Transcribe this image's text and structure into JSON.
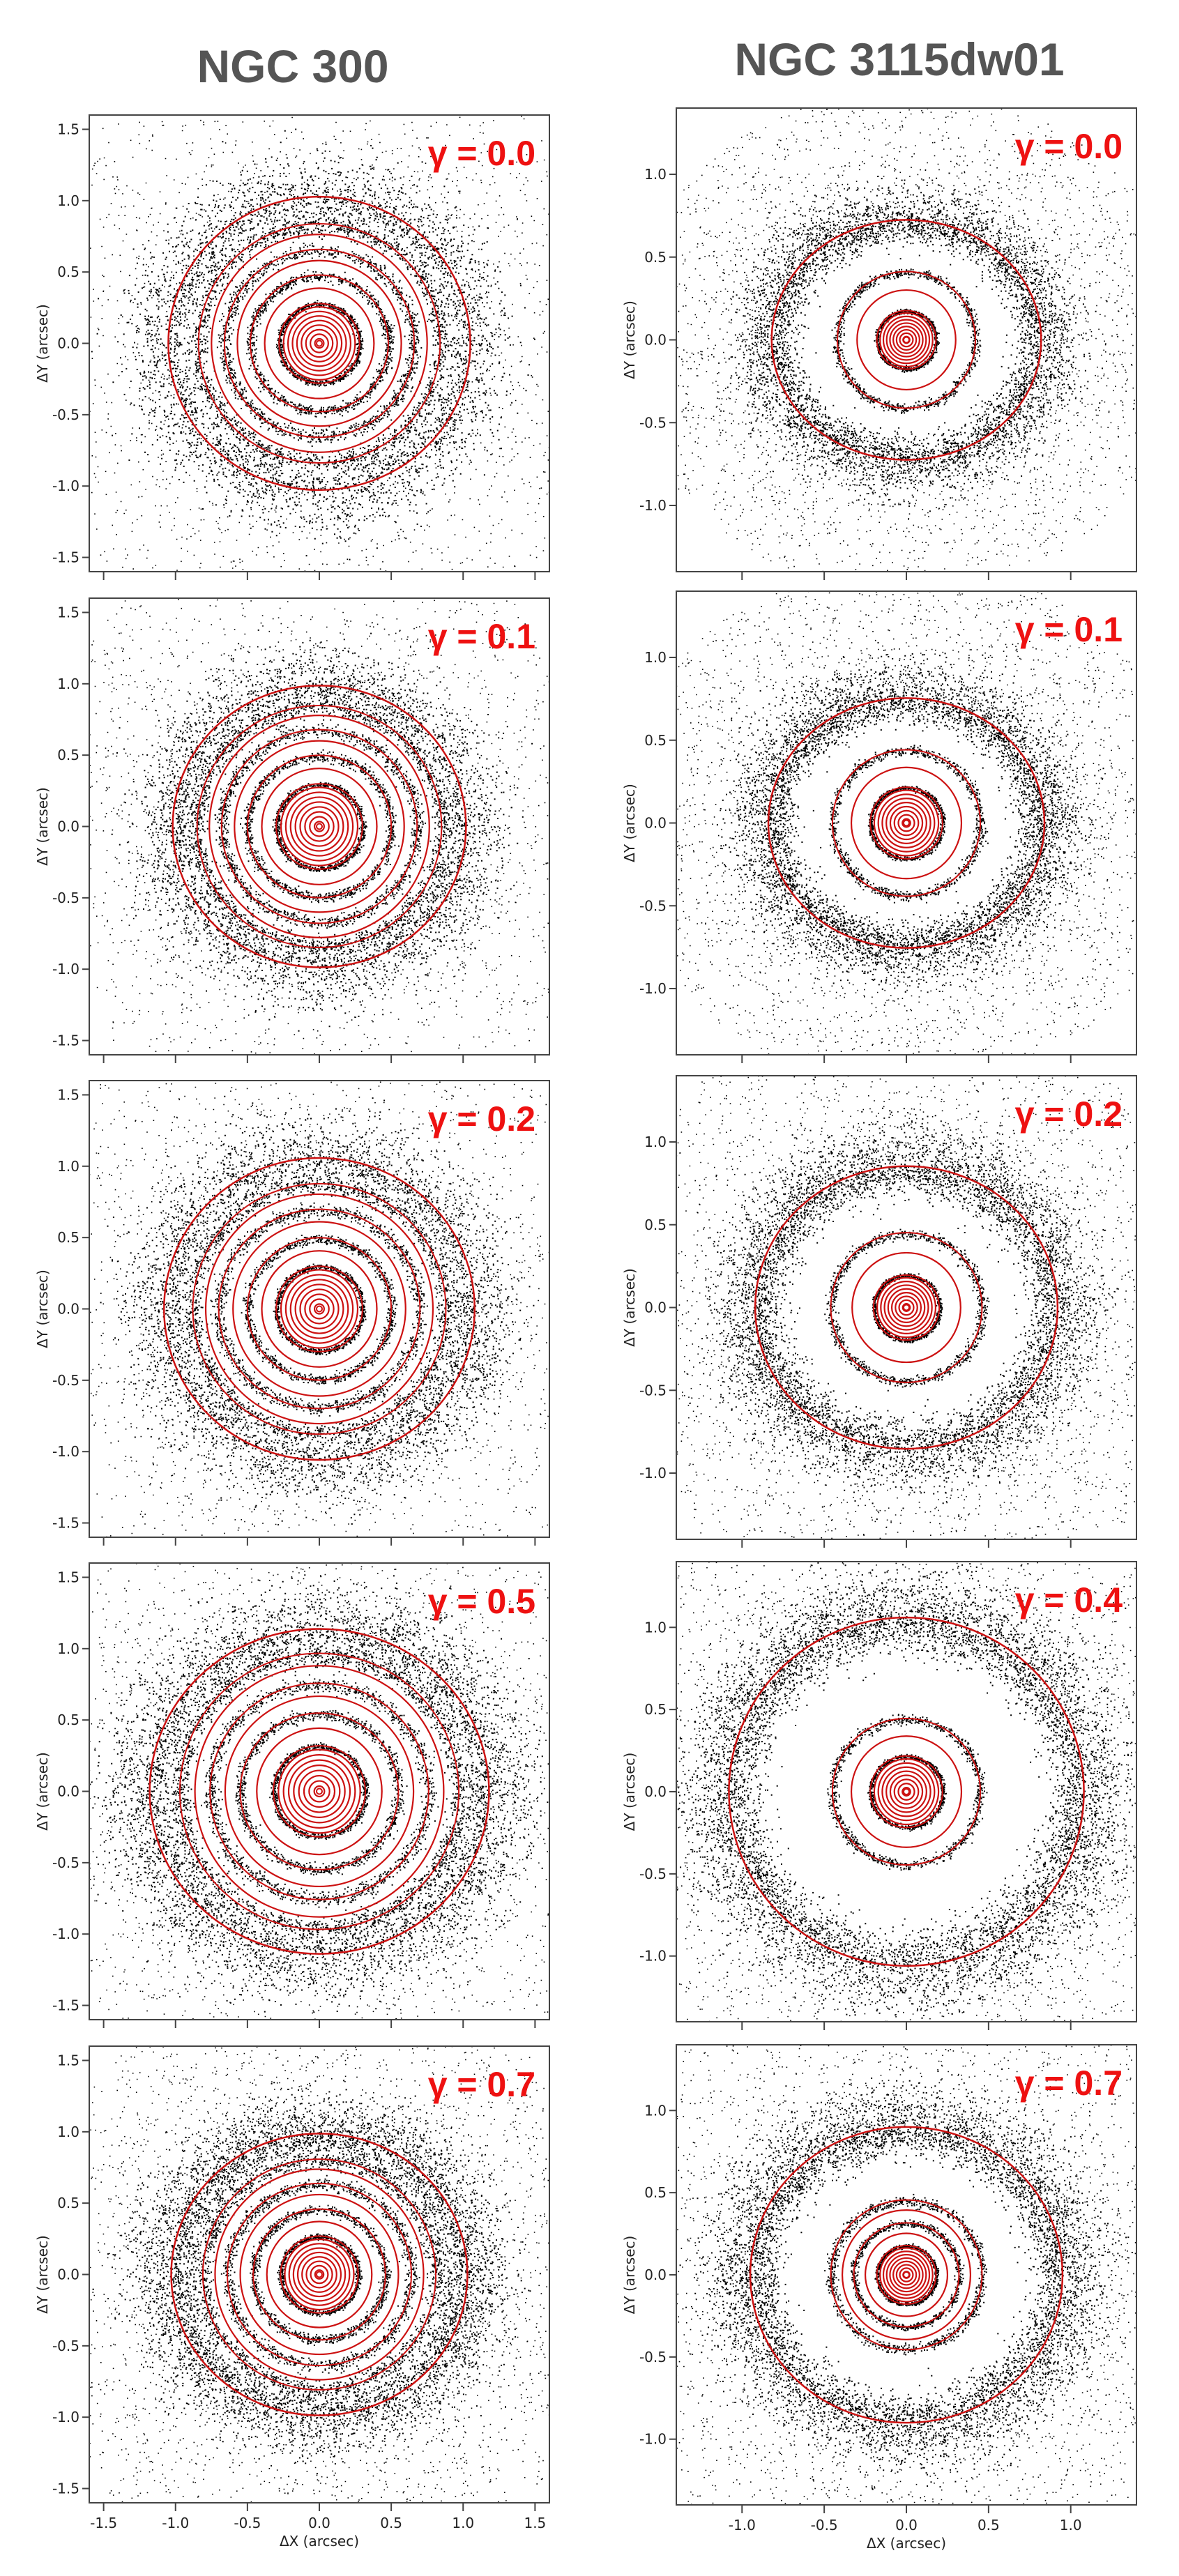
{
  "columns": [
    {
      "title": "NGC 300"
    },
    {
      "title": "NGC 3115dw01"
    }
  ],
  "chart_data": [
    {
      "type": "scatter",
      "galaxy": "NGC 300",
      "annotation": "γ = 0.0",
      "ylabel": "ΔY (arcsec)",
      "xlabel": "",
      "xlim": [
        -1.6,
        1.6
      ],
      "ylim": [
        -1.6,
        1.6
      ],
      "xticks": [],
      "yticks": [
        -1.5,
        -1.0,
        -0.5,
        0.0,
        0.5,
        1.0,
        1.5
      ],
      "ytick_labels": [
        "-1.5",
        "-1.0",
        "-0.5",
        "0.0",
        "0.5",
        "1.0",
        "1.5"
      ],
      "ring_radii": [
        0.28,
        0.48,
        0.66,
        0.84
      ],
      "outer_ellipse": {
        "rx": 1.05,
        "ry": 1.02
      },
      "ring_colors": [
        "#222222",
        "#cc1111"
      ],
      "star_density": 0.55
    },
    {
      "type": "scatter",
      "galaxy": "NGC 3115dw01",
      "annotation": "γ = 0.0",
      "ylabel": "ΔY (arcsec)",
      "xlabel": "",
      "xlim": [
        -1.4,
        1.4
      ],
      "ylim": [
        -1.4,
        1.4
      ],
      "xticks": [],
      "yticks": [
        -1.0,
        -0.5,
        0.0,
        0.5,
        1.0
      ],
      "ytick_labels": [
        "-1.0",
        "-0.5",
        "0.0",
        "0.5",
        "1.0"
      ],
      "ring_radii": [
        0.18,
        0.42
      ],
      "outer_ellipse": {
        "rx": 0.82,
        "ry": 0.73
      },
      "ring_colors": [
        "#222222",
        "#cc1111"
      ],
      "star_density": 0.75
    },
    {
      "type": "scatter",
      "galaxy": "NGC 300",
      "annotation": "γ = 0.1",
      "ylabel": "ΔY (arcsec)",
      "xlabel": "",
      "xlim": [
        -1.6,
        1.6
      ],
      "ylim": [
        -1.6,
        1.6
      ],
      "xticks": [],
      "yticks": [
        -1.5,
        -1.0,
        -0.5,
        0.0,
        0.5,
        1.0,
        1.5
      ],
      "ytick_labels": [
        "-1.5",
        "-1.0",
        "-0.5",
        "0.0",
        "0.5",
        "1.0",
        "1.5"
      ],
      "ring_radii": [
        0.3,
        0.5,
        0.68,
        0.85
      ],
      "outer_ellipse": {
        "rx": 1.02,
        "ry": 0.98
      },
      "ring_colors": [
        "#222222",
        "#cc1111"
      ],
      "star_density": 0.55
    },
    {
      "type": "scatter",
      "galaxy": "NGC 3115dw01",
      "annotation": "γ = 0.1",
      "ylabel": "ΔY (arcsec)",
      "xlabel": "",
      "xlim": [
        -1.4,
        1.4
      ],
      "ylim": [
        -1.4,
        1.4
      ],
      "xticks": [],
      "yticks": [
        -1.0,
        -0.5,
        0.0,
        0.5,
        1.0
      ],
      "ytick_labels": [
        "-1.0",
        "-0.5",
        "0.0",
        "0.5",
        "1.0"
      ],
      "ring_radii": [
        0.22,
        0.45
      ],
      "outer_ellipse": {
        "rx": 0.84,
        "ry": 0.76
      },
      "ring_colors": [
        "#222222",
        "#cc1111"
      ],
      "star_density": 0.8
    },
    {
      "type": "scatter",
      "galaxy": "NGC 300",
      "annotation": "γ = 0.2",
      "ylabel": "ΔY (arcsec)",
      "xlabel": "",
      "xlim": [
        -1.6,
        1.6
      ],
      "ylim": [
        -1.6,
        1.6
      ],
      "xticks": [],
      "yticks": [
        -1.5,
        -1.0,
        -0.5,
        0.0,
        0.5,
        1.0,
        1.5
      ],
      "ytick_labels": [
        "-1.5",
        "-1.0",
        "-0.5",
        "0.0",
        "0.5",
        "1.0",
        "1.5"
      ],
      "ring_radii": [
        0.3,
        0.5,
        0.7,
        0.88
      ],
      "outer_ellipse": {
        "rx": 1.08,
        "ry": 1.05
      },
      "ring_colors": [
        "#222222",
        "#cc1111"
      ],
      "star_density": 0.6
    },
    {
      "type": "scatter",
      "galaxy": "NGC 3115dw01",
      "annotation": "γ = 0.2",
      "ylabel": "ΔY (arcsec)",
      "xlabel": "",
      "xlim": [
        -1.4,
        1.4
      ],
      "ylim": [
        -1.4,
        1.4
      ],
      "xticks": [],
      "yticks": [
        -1.0,
        -0.5,
        0.0,
        0.5,
        1.0
      ],
      "ytick_labels": [
        "-1.0",
        "-0.5",
        "0.0",
        "0.5",
        "1.0"
      ],
      "ring_radii": [
        0.2,
        0.46
      ],
      "outer_ellipse": {
        "rx": 0.92,
        "ry": 0.86
      },
      "ring_colors": [
        "#222222",
        "#cc1111"
      ],
      "star_density": 0.85
    },
    {
      "type": "scatter",
      "galaxy": "NGC 300",
      "annotation": "γ = 0.5",
      "ylabel": "ΔY (arcsec)",
      "xlabel": "",
      "xlim": [
        -1.6,
        1.6
      ],
      "ylim": [
        -1.6,
        1.6
      ],
      "xticks": [],
      "yticks": [
        -1.5,
        -1.0,
        -0.5,
        0.0,
        0.5,
        1.0,
        1.5
      ],
      "ytick_labels": [
        "-1.5",
        "-1.0",
        "-0.5",
        "0.0",
        "0.5",
        "1.0",
        "1.5"
      ],
      "ring_radii": [
        0.32,
        0.55,
        0.76,
        0.97
      ],
      "outer_ellipse": {
        "rx": 1.18,
        "ry": 1.13
      },
      "ring_colors": [
        "#222222",
        "#cc1111"
      ],
      "star_density": 0.75
    },
    {
      "type": "scatter",
      "galaxy": "NGC 3115dw01",
      "annotation": "γ = 0.4",
      "ylabel": "ΔY (arcsec)",
      "xlabel": "",
      "xlim": [
        -1.4,
        1.4
      ],
      "ylim": [
        -1.4,
        1.4
      ],
      "xticks": [],
      "yticks": [
        -1.0,
        -0.5,
        0.0,
        0.5,
        1.0
      ],
      "ytick_labels": [
        "-1.0",
        "-0.5",
        "0.0",
        "0.5",
        "1.0"
      ],
      "ring_radii": [
        0.22,
        0.45
      ],
      "outer_ellipse": {
        "rx": 1.08,
        "ry": 1.06
      },
      "ring_colors": [
        "#222222",
        "#cc1111"
      ],
      "star_density": 1.0
    },
    {
      "type": "scatter",
      "galaxy": "NGC 300",
      "annotation": "γ = 0.7",
      "ylabel": "ΔY (arcsec)",
      "xlabel": "ΔX (arcsec)",
      "xlim": [
        -1.6,
        1.6
      ],
      "ylim": [
        -1.6,
        1.6
      ],
      "xticks": [
        -1.5,
        -1.0,
        -0.5,
        0.0,
        0.5,
        1.0,
        1.5
      ],
      "xtick_labels": [
        "-1.5",
        "-1.0",
        "-0.5",
        "0.0",
        "0.5",
        "1.0",
        "1.5"
      ],
      "yticks": [
        -1.5,
        -1.0,
        -0.5,
        0.0,
        0.5,
        1.0,
        1.5
      ],
      "ytick_labels": [
        "-1.5",
        "-1.0",
        "-0.5",
        "0.0",
        "0.5",
        "1.0",
        "1.5"
      ],
      "ring_radii": [
        0.27,
        0.46,
        0.64,
        0.81
      ],
      "outer_ellipse": {
        "rx": 1.03,
        "ry": 0.98
      },
      "ring_colors": [
        "#222222",
        "#cc1111"
      ],
      "star_density": 0.8
    },
    {
      "type": "scatter",
      "galaxy": "NGC 3115dw01",
      "annotation": "γ = 0.7",
      "ylabel": "ΔY (arcsec)",
      "xlabel": "ΔX (arcsec)",
      "xlim": [
        -1.4,
        1.4
      ],
      "ylim": [
        -1.4,
        1.4
      ],
      "xticks": [
        -1.0,
        -0.5,
        0.0,
        0.5,
        1.0
      ],
      "xtick_labels": [
        "-1.0",
        "-0.5",
        "0.0",
        "0.5",
        "1.0"
      ],
      "yticks": [
        -1.0,
        -0.5,
        0.0,
        0.5,
        1.0
      ],
      "ytick_labels": [
        "-1.0",
        "-0.5",
        "0.0",
        "0.5",
        "1.0"
      ],
      "ring_radii": [
        0.18,
        0.32,
        0.46
      ],
      "outer_ellipse": {
        "rx": 0.95,
        "ry": 0.9
      },
      "ring_colors": [
        "#222222",
        "#cc1111"
      ],
      "star_density": 0.9
    }
  ]
}
